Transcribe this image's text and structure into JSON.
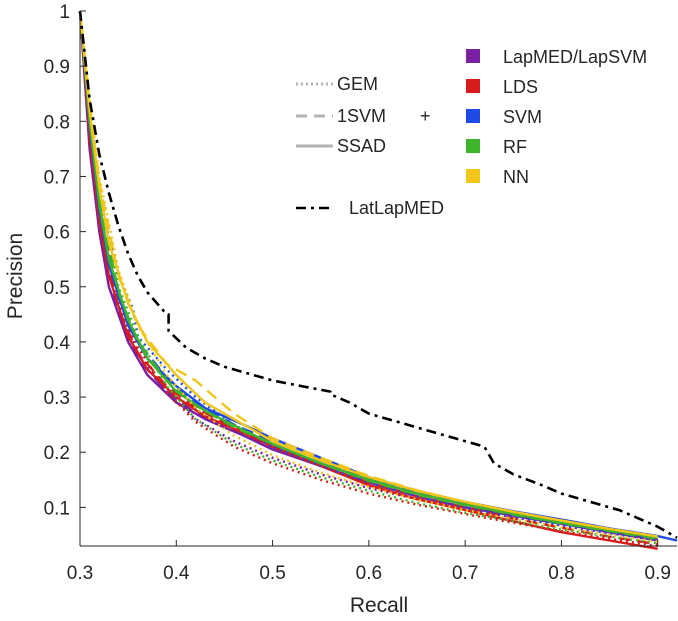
{
  "chart_data": {
    "type": "line",
    "xlabel": "Recall",
    "ylabel": "Precision",
    "xlim": [
      0.3,
      0.92
    ],
    "ylim": [
      0.03,
      1.0
    ],
    "xticks": [
      0.3,
      0.4,
      0.5,
      0.6,
      0.7,
      0.8,
      0.9
    ],
    "yticks": [
      0.1,
      0.2,
      0.3,
      0.4,
      0.5,
      0.6,
      0.7,
      0.8,
      0.9,
      1.0
    ],
    "xtick_labels": [
      "0.3",
      "0.4",
      "0.5",
      "0.6",
      "0.7",
      "0.8",
      "0.9"
    ],
    "ytick_labels": [
      "0.1",
      "0.2",
      "0.3",
      "0.4",
      "0.5",
      "0.6",
      "0.7",
      "0.8",
      "0.9",
      "1"
    ],
    "grid": false,
    "legend": {
      "placement": "top-right",
      "styles": [
        {
          "label": "GEM",
          "dash": "dotted"
        },
        {
          "label": "1SVM",
          "dash": "dashed"
        },
        {
          "label": "SSAD",
          "dash": "solid"
        }
      ],
      "plus": "+",
      "methods": [
        {
          "label": "LapMED/LapSVM",
          "color": "#7B1FA2"
        },
        {
          "label": "LDS",
          "color": "#D81B1B"
        },
        {
          "label": "SVM",
          "color": "#1E4BE5"
        },
        {
          "label": "RF",
          "color": "#3DB42A"
        },
        {
          "label": "NN",
          "color": "#F2C518"
        }
      ],
      "special": {
        "label": "LatLapMED",
        "color": "#000000",
        "dash": "dashdot"
      }
    },
    "series": [
      {
        "name": "LatLapMED",
        "color": "#000000",
        "dash": "dashdot",
        "x": [
          0.3,
          0.31,
          0.32,
          0.33,
          0.34,
          0.35,
          0.36,
          0.37,
          0.38,
          0.39,
          0.392,
          0.392,
          0.41,
          0.43,
          0.45,
          0.48,
          0.5,
          0.53,
          0.56,
          0.56,
          0.58,
          0.6,
          0.63,
          0.66,
          0.69,
          0.72,
          0.73,
          0.75,
          0.78,
          0.8,
          0.83,
          0.86,
          0.88,
          0.9,
          0.92
        ],
        "y": [
          1.0,
          0.84,
          0.74,
          0.67,
          0.61,
          0.56,
          0.52,
          0.49,
          0.47,
          0.45,
          0.45,
          0.42,
          0.39,
          0.37,
          0.355,
          0.34,
          0.33,
          0.32,
          0.31,
          0.305,
          0.29,
          0.27,
          0.255,
          0.24,
          0.225,
          0.21,
          0.18,
          0.16,
          0.14,
          0.125,
          0.11,
          0.095,
          0.08,
          0.065,
          0.045
        ]
      },
      {
        "name": "LapMED/LapSVM",
        "color": "#7B1FA2",
        "dash": "solid",
        "x": [
          0.3,
          0.31,
          0.32,
          0.33,
          0.35,
          0.37,
          0.4,
          0.43,
          0.47,
          0.5,
          0.55,
          0.6,
          0.65,
          0.7,
          0.75,
          0.8,
          0.85,
          0.9
        ],
        "y": [
          1.0,
          0.75,
          0.6,
          0.5,
          0.4,
          0.34,
          0.29,
          0.26,
          0.23,
          0.205,
          0.175,
          0.145,
          0.12,
          0.1,
          0.085,
          0.07,
          0.055,
          0.04
        ]
      },
      {
        "name": "LapMED/LapSVM",
        "color": "#7B1FA2",
        "dash": "dashed",
        "x": [
          0.3,
          0.31,
          0.32,
          0.34,
          0.36,
          0.39,
          0.42,
          0.46,
          0.5,
          0.55,
          0.6,
          0.65,
          0.7,
          0.75,
          0.8,
          0.85,
          0.9
        ],
        "y": [
          1.0,
          0.76,
          0.61,
          0.45,
          0.37,
          0.31,
          0.27,
          0.24,
          0.21,
          0.18,
          0.15,
          0.125,
          0.105,
          0.088,
          0.072,
          0.057,
          0.042
        ]
      },
      {
        "name": "LapMED/LapSVM",
        "color": "#7B1FA2",
        "dash": "dotted",
        "x": [
          0.3,
          0.31,
          0.32,
          0.34,
          0.36,
          0.39,
          0.42,
          0.46,
          0.5,
          0.55,
          0.6,
          0.65,
          0.7,
          0.75,
          0.8,
          0.85,
          0.9
        ],
        "y": [
          1.0,
          0.78,
          0.63,
          0.47,
          0.38,
          0.31,
          0.26,
          0.22,
          0.19,
          0.16,
          0.135,
          0.115,
          0.097,
          0.082,
          0.067,
          0.053,
          0.04
        ]
      },
      {
        "name": "LDS",
        "color": "#D81B1B",
        "dash": "solid",
        "x": [
          0.3,
          0.31,
          0.32,
          0.33,
          0.35,
          0.37,
          0.4,
          0.43,
          0.47,
          0.5,
          0.55,
          0.6,
          0.65,
          0.7,
          0.75,
          0.8,
          0.85,
          0.9
        ],
        "y": [
          1.0,
          0.77,
          0.62,
          0.52,
          0.41,
          0.35,
          0.3,
          0.265,
          0.235,
          0.21,
          0.175,
          0.14,
          0.115,
          0.095,
          0.075,
          0.055,
          0.04,
          0.025
        ]
      },
      {
        "name": "LDS",
        "color": "#D81B1B",
        "dash": "dashed",
        "x": [
          0.3,
          0.31,
          0.32,
          0.34,
          0.36,
          0.39,
          0.42,
          0.46,
          0.5,
          0.55,
          0.6,
          0.65,
          0.7,
          0.75,
          0.8,
          0.85,
          0.9
        ],
        "y": [
          1.0,
          0.78,
          0.63,
          0.46,
          0.38,
          0.32,
          0.28,
          0.245,
          0.21,
          0.175,
          0.145,
          0.12,
          0.1,
          0.08,
          0.063,
          0.047,
          0.033
        ]
      },
      {
        "name": "LDS",
        "color": "#D81B1B",
        "dash": "dotted",
        "x": [
          0.3,
          0.31,
          0.32,
          0.34,
          0.36,
          0.39,
          0.42,
          0.46,
          0.5,
          0.55,
          0.6,
          0.65,
          0.7,
          0.75,
          0.8,
          0.85,
          0.9
        ],
        "y": [
          1.0,
          0.79,
          0.64,
          0.48,
          0.39,
          0.31,
          0.255,
          0.21,
          0.18,
          0.15,
          0.125,
          0.105,
          0.088,
          0.072,
          0.057,
          0.043,
          0.03
        ]
      },
      {
        "name": "SVM",
        "color": "#1E4BE5",
        "dash": "solid",
        "x": [
          0.3,
          0.31,
          0.32,
          0.33,
          0.35,
          0.37,
          0.4,
          0.43,
          0.47,
          0.5,
          0.55,
          0.6,
          0.65,
          0.7,
          0.75,
          0.8,
          0.85,
          0.9,
          0.92
        ],
        "y": [
          1.0,
          0.79,
          0.64,
          0.54,
          0.43,
          0.37,
          0.32,
          0.28,
          0.25,
          0.225,
          0.19,
          0.155,
          0.13,
          0.11,
          0.093,
          0.078,
          0.062,
          0.048,
          0.04
        ]
      },
      {
        "name": "SVM",
        "color": "#1E4BE5",
        "dash": "dashed",
        "x": [
          0.3,
          0.31,
          0.32,
          0.34,
          0.36,
          0.39,
          0.42,
          0.46,
          0.5,
          0.55,
          0.6,
          0.65,
          0.7,
          0.75,
          0.8,
          0.85,
          0.9
        ],
        "y": [
          1.0,
          0.8,
          0.65,
          0.48,
          0.4,
          0.335,
          0.29,
          0.25,
          0.22,
          0.185,
          0.152,
          0.127,
          0.107,
          0.09,
          0.074,
          0.059,
          0.045
        ]
      },
      {
        "name": "SVM",
        "color": "#1E4BE5",
        "dash": "dotted",
        "x": [
          0.3,
          0.31,
          0.32,
          0.34,
          0.355,
          0.36,
          0.39,
          0.42,
          0.46,
          0.5,
          0.55,
          0.6,
          0.65,
          0.7,
          0.75,
          0.8,
          0.85,
          0.9
        ],
        "y": [
          1.0,
          0.8,
          0.66,
          0.52,
          0.46,
          0.41,
          0.35,
          0.3,
          0.25,
          0.21,
          0.175,
          0.145,
          0.12,
          0.1,
          0.083,
          0.068,
          0.054,
          0.041
        ]
      },
      {
        "name": "RF",
        "color": "#3DB42A",
        "dash": "solid",
        "x": [
          0.3,
          0.31,
          0.32,
          0.33,
          0.35,
          0.37,
          0.4,
          0.43,
          0.47,
          0.5,
          0.55,
          0.6,
          0.65,
          0.7,
          0.75,
          0.8,
          0.85,
          0.9
        ],
        "y": [
          1.0,
          0.8,
          0.65,
          0.55,
          0.44,
          0.37,
          0.31,
          0.275,
          0.24,
          0.215,
          0.18,
          0.15,
          0.125,
          0.105,
          0.088,
          0.072,
          0.058,
          0.045
        ]
      },
      {
        "name": "RF",
        "color": "#3DB42A",
        "dash": "dashed",
        "x": [
          0.3,
          0.31,
          0.32,
          0.34,
          0.36,
          0.39,
          0.42,
          0.46,
          0.5,
          0.55,
          0.6,
          0.65,
          0.7,
          0.75,
          0.8,
          0.85,
          0.9
        ],
        "y": [
          1.0,
          0.81,
          0.66,
          0.49,
          0.4,
          0.33,
          0.285,
          0.245,
          0.215,
          0.18,
          0.148,
          0.123,
          0.104,
          0.087,
          0.071,
          0.057,
          0.043
        ]
      },
      {
        "name": "RF",
        "color": "#3DB42A",
        "dash": "dotted",
        "x": [
          0.3,
          0.31,
          0.32,
          0.34,
          0.36,
          0.39,
          0.42,
          0.46,
          0.5,
          0.55,
          0.6,
          0.65,
          0.7,
          0.75,
          0.8,
          0.85,
          0.9
        ],
        "y": [
          1.0,
          0.82,
          0.67,
          0.5,
          0.41,
          0.32,
          0.26,
          0.215,
          0.185,
          0.155,
          0.13,
          0.108,
          0.09,
          0.075,
          0.06,
          0.047,
          0.035
        ]
      },
      {
        "name": "NN",
        "color": "#F2C518",
        "dash": "solid",
        "x": [
          0.3,
          0.31,
          0.32,
          0.33,
          0.35,
          0.37,
          0.4,
          0.43,
          0.47,
          0.5,
          0.55,
          0.6,
          0.65,
          0.7,
          0.75,
          0.8,
          0.85,
          0.9
        ],
        "y": [
          1.0,
          0.82,
          0.68,
          0.58,
          0.47,
          0.4,
          0.34,
          0.29,
          0.25,
          0.22,
          0.185,
          0.155,
          0.13,
          0.11,
          0.092,
          0.076,
          0.061,
          0.047
        ]
      },
      {
        "name": "NN",
        "color": "#F2C518",
        "dash": "dashed",
        "x": [
          0.3,
          0.31,
          0.32,
          0.34,
          0.36,
          0.39,
          0.42,
          0.44,
          0.46,
          0.5,
          0.55,
          0.6,
          0.65,
          0.7,
          0.75,
          0.8,
          0.85,
          0.9
        ],
        "y": [
          1.0,
          0.83,
          0.69,
          0.52,
          0.43,
          0.36,
          0.33,
          0.3,
          0.27,
          0.225,
          0.19,
          0.157,
          0.131,
          0.11,
          0.092,
          0.076,
          0.061,
          0.047
        ]
      },
      {
        "name": "NN",
        "color": "#F2C518",
        "dash": "dotted",
        "x": [
          0.3,
          0.31,
          0.32,
          0.34,
          0.36,
          0.39,
          0.42,
          0.46,
          0.5,
          0.55,
          0.6,
          0.65,
          0.7,
          0.75,
          0.8,
          0.85,
          0.9
        ],
        "y": [
          1.0,
          0.84,
          0.7,
          0.53,
          0.43,
          0.34,
          0.28,
          0.23,
          0.195,
          0.163,
          0.137,
          0.114,
          0.095,
          0.079,
          0.064,
          0.05,
          0.038
        ]
      }
    ]
  }
}
